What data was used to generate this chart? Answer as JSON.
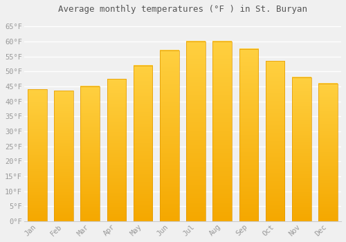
{
  "title": "Average monthly temperatures (°F ) in St. Buryan",
  "months": [
    "Jan",
    "Feb",
    "Mar",
    "Apr",
    "May",
    "Jun",
    "Jul",
    "Aug",
    "Sep",
    "Oct",
    "Nov",
    "Dec"
  ],
  "values": [
    44.0,
    43.5,
    45.0,
    47.5,
    52.0,
    57.0,
    60.0,
    60.0,
    57.5,
    53.5,
    48.0,
    46.0
  ],
  "bar_color_bottom": "#F5A800",
  "bar_color_top": "#FFD040",
  "bar_edge_color": "#E09800",
  "ylim": [
    0,
    68
  ],
  "yticks": [
    0,
    5,
    10,
    15,
    20,
    25,
    30,
    35,
    40,
    45,
    50,
    55,
    60,
    65
  ],
  "ytick_labels": [
    "0°F",
    "5°F",
    "10°F",
    "15°F",
    "20°F",
    "25°F",
    "30°F",
    "35°F",
    "40°F",
    "45°F",
    "50°F",
    "55°F",
    "60°F",
    "65°F"
  ],
  "background_color": "#f0f0f0",
  "grid_color": "#ffffff",
  "title_fontsize": 9,
  "tick_fontsize": 7.5,
  "tick_font_color": "#999999",
  "tick_font_family": "monospace",
  "title_color": "#555555"
}
